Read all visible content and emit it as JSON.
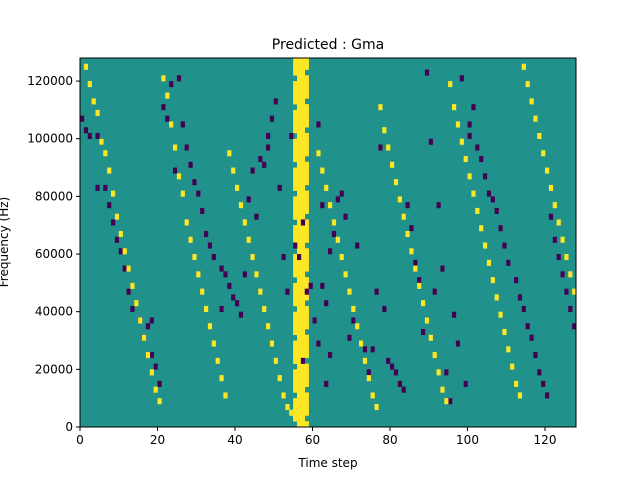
{
  "chart_data": {
    "type": "heatmap",
    "title": "Predicted : Gma",
    "xlabel": "Time step",
    "ylabel": "Frequency (Hz)",
    "xlim": [
      0,
      128
    ],
    "ylim": [
      0,
      128000
    ],
    "x_ticks": [
      0,
      20,
      40,
      60,
      80,
      100,
      120
    ],
    "y_ticks": [
      0,
      20000,
      40000,
      60000,
      80000,
      100000,
      120000
    ],
    "x_tick_labels": [
      "0",
      "20",
      "40",
      "60",
      "80",
      "100",
      "120"
    ],
    "y_tick_labels": [
      "0",
      "20000",
      "40000",
      "60000",
      "80000",
      "100000",
      "120000"
    ],
    "time_steps": 128,
    "frequency_bins": 64,
    "colormap": "viridis",
    "colors": {
      "background": "#21918c",
      "low": "#440154",
      "high": "#fde725"
    },
    "grid": false,
    "dark_cells": [
      [
        0,
        106
      ],
      [
        1,
        102
      ],
      [
        2,
        101
      ],
      [
        4,
        101
      ],
      [
        4,
        83
      ],
      [
        5,
        98
      ],
      [
        6,
        83
      ],
      [
        7,
        76
      ],
      [
        8,
        70
      ],
      [
        9,
        64
      ],
      [
        10,
        60
      ],
      [
        11,
        54
      ],
      [
        12,
        46
      ],
      [
        13,
        40
      ],
      [
        15,
        36
      ],
      [
        16,
        30
      ],
      [
        17,
        34
      ],
      [
        18,
        36
      ],
      [
        18,
        24
      ],
      [
        19,
        20
      ],
      [
        20,
        14
      ],
      [
        21,
        110
      ],
      [
        22,
        106
      ],
      [
        23,
        118
      ],
      [
        24,
        88
      ],
      [
        25,
        120
      ],
      [
        26,
        104
      ],
      [
        27,
        96
      ],
      [
        28,
        90
      ],
      [
        29,
        84
      ],
      [
        30,
        80
      ],
      [
        31,
        74
      ],
      [
        32,
        66
      ],
      [
        33,
        62
      ],
      [
        34,
        58
      ],
      [
        36,
        54
      ],
      [
        36,
        40
      ],
      [
        37,
        52
      ],
      [
        38,
        48
      ],
      [
        39,
        44
      ],
      [
        40,
        42
      ],
      [
        41,
        38
      ],
      [
        42,
        52
      ],
      [
        43,
        78
      ],
      [
        44,
        88
      ],
      [
        45,
        72
      ],
      [
        46,
        92
      ],
      [
        47,
        90
      ],
      [
        48,
        96
      ],
      [
        48,
        100
      ],
      [
        49,
        106
      ],
      [
        50,
        112
      ],
      [
        51,
        82
      ],
      [
        52,
        58
      ],
      [
        53,
        46
      ],
      [
        54,
        100
      ],
      [
        55,
        62
      ],
      [
        56,
        58
      ],
      [
        57,
        70
      ],
      [
        57,
        22
      ],
      [
        58,
        46
      ],
      [
        59,
        48
      ],
      [
        60,
        36
      ],
      [
        61,
        104
      ],
      [
        61,
        28
      ],
      [
        62,
        48
      ],
      [
        62,
        76
      ],
      [
        63,
        42
      ],
      [
        63,
        14
      ],
      [
        64,
        60
      ],
      [
        64,
        24
      ],
      [
        65,
        66
      ],
      [
        66,
        78
      ],
      [
        67,
        80
      ],
      [
        68,
        72
      ],
      [
        69,
        30
      ],
      [
        70,
        36
      ],
      [
        71,
        62
      ],
      [
        72,
        28
      ],
      [
        73,
        26
      ],
      [
        74,
        18
      ],
      [
        75,
        26
      ],
      [
        76,
        46
      ],
      [
        77,
        96
      ],
      [
        78,
        40
      ],
      [
        79,
        22
      ],
      [
        80,
        20
      ],
      [
        81,
        18
      ],
      [
        82,
        14
      ],
      [
        83,
        12
      ],
      [
        84,
        76
      ],
      [
        85,
        68
      ],
      [
        86,
        56
      ],
      [
        87,
        50
      ],
      [
        88,
        32
      ],
      [
        89,
        122
      ],
      [
        90,
        98
      ],
      [
        91,
        46
      ],
      [
        92,
        76
      ],
      [
        93,
        54
      ],
      [
        94,
        18
      ],
      [
        95,
        8
      ],
      [
        96,
        38
      ],
      [
        97,
        28
      ],
      [
        98,
        120
      ],
      [
        99,
        14
      ],
      [
        100,
        104
      ],
      [
        100,
        100
      ],
      [
        101,
        110
      ],
      [
        102,
        96
      ],
      [
        103,
        92
      ],
      [
        104,
        86
      ],
      [
        105,
        80
      ],
      [
        106,
        78
      ],
      [
        107,
        74
      ],
      [
        108,
        68
      ],
      [
        109,
        62
      ],
      [
        110,
        56
      ],
      [
        112,
        50
      ],
      [
        113,
        44
      ],
      [
        114,
        40
      ],
      [
        115,
        34
      ],
      [
        116,
        30
      ],
      [
        117,
        24
      ],
      [
        118,
        18
      ],
      [
        119,
        14
      ],
      [
        120,
        10
      ],
      [
        121,
        72
      ],
      [
        122,
        64
      ],
      [
        123,
        58
      ],
      [
        124,
        52
      ],
      [
        125,
        46
      ],
      [
        126,
        40
      ],
      [
        127,
        34
      ]
    ],
    "bright_cells": [
      [
        1,
        124
      ],
      [
        2,
        118
      ],
      [
        3,
        112
      ],
      [
        4,
        108
      ],
      [
        5,
        98
      ],
      [
        6,
        94
      ],
      [
        7,
        88
      ],
      [
        8,
        80
      ],
      [
        9,
        72
      ],
      [
        10,
        66
      ],
      [
        11,
        60
      ],
      [
        12,
        54
      ],
      [
        13,
        48
      ],
      [
        14,
        42
      ],
      [
        15,
        36
      ],
      [
        16,
        30
      ],
      [
        17,
        24
      ],
      [
        18,
        18
      ],
      [
        19,
        12
      ],
      [
        20,
        8
      ],
      [
        21,
        120
      ],
      [
        22,
        114
      ],
      [
        23,
        104
      ],
      [
        24,
        96
      ],
      [
        25,
        86
      ],
      [
        26,
        80
      ],
      [
        27,
        70
      ],
      [
        28,
        64
      ],
      [
        29,
        58
      ],
      [
        30,
        52
      ],
      [
        31,
        46
      ],
      [
        32,
        40
      ],
      [
        33,
        34
      ],
      [
        34,
        28
      ],
      [
        35,
        22
      ],
      [
        36,
        16
      ],
      [
        37,
        10
      ],
      [
        38,
        94
      ],
      [
        39,
        88
      ],
      [
        40,
        82
      ],
      [
        41,
        76
      ],
      [
        42,
        70
      ],
      [
        43,
        64
      ],
      [
        44,
        58
      ],
      [
        45,
        52
      ],
      [
        46,
        46
      ],
      [
        47,
        40
      ],
      [
        48,
        34
      ],
      [
        49,
        28
      ],
      [
        50,
        22
      ],
      [
        51,
        16
      ],
      [
        52,
        10
      ],
      [
        53,
        6
      ],
      [
        54,
        4
      ],
      [
        55,
        2
      ],
      [
        61,
        94
      ],
      [
        62,
        88
      ],
      [
        63,
        82
      ],
      [
        64,
        76
      ],
      [
        65,
        70
      ],
      [
        66,
        64
      ],
      [
        67,
        58
      ],
      [
        68,
        52
      ],
      [
        69,
        46
      ],
      [
        70,
        40
      ],
      [
        71,
        34
      ],
      [
        72,
        28
      ],
      [
        73,
        22
      ],
      [
        74,
        16
      ],
      [
        75,
        10
      ],
      [
        76,
        6
      ],
      [
        77,
        110
      ],
      [
        78,
        102
      ],
      [
        79,
        96
      ],
      [
        80,
        90
      ],
      [
        81,
        84
      ],
      [
        82,
        78
      ],
      [
        83,
        72
      ],
      [
        84,
        66
      ],
      [
        85,
        60
      ],
      [
        86,
        54
      ],
      [
        87,
        48
      ],
      [
        88,
        42
      ],
      [
        89,
        36
      ],
      [
        90,
        30
      ],
      [
        91,
        24
      ],
      [
        92,
        18
      ],
      [
        93,
        12
      ],
      [
        94,
        8
      ],
      [
        95,
        118
      ],
      [
        96,
        110
      ],
      [
        97,
        104
      ],
      [
        98,
        98
      ],
      [
        99,
        92
      ],
      [
        100,
        86
      ],
      [
        101,
        80
      ],
      [
        102,
        74
      ],
      [
        103,
        68
      ],
      [
        104,
        62
      ],
      [
        105,
        56
      ],
      [
        106,
        50
      ],
      [
        107,
        44
      ],
      [
        108,
        38
      ],
      [
        109,
        32
      ],
      [
        110,
        26
      ],
      [
        111,
        20
      ],
      [
        112,
        14
      ],
      [
        113,
        10
      ],
      [
        114,
        124
      ],
      [
        115,
        118
      ],
      [
        116,
        112
      ],
      [
        117,
        106
      ],
      [
        118,
        100
      ],
      [
        119,
        94
      ],
      [
        120,
        88
      ],
      [
        121,
        82
      ],
      [
        122,
        76
      ],
      [
        123,
        70
      ],
      [
        124,
        64
      ],
      [
        125,
        58
      ],
      [
        126,
        52
      ],
      [
        127,
        46
      ]
    ],
    "bright_band": {
      "x_start": 55,
      "x_end": 58,
      "note": "continuous high-intensity band spanning most frequency rows around time steps 55-58"
    }
  }
}
